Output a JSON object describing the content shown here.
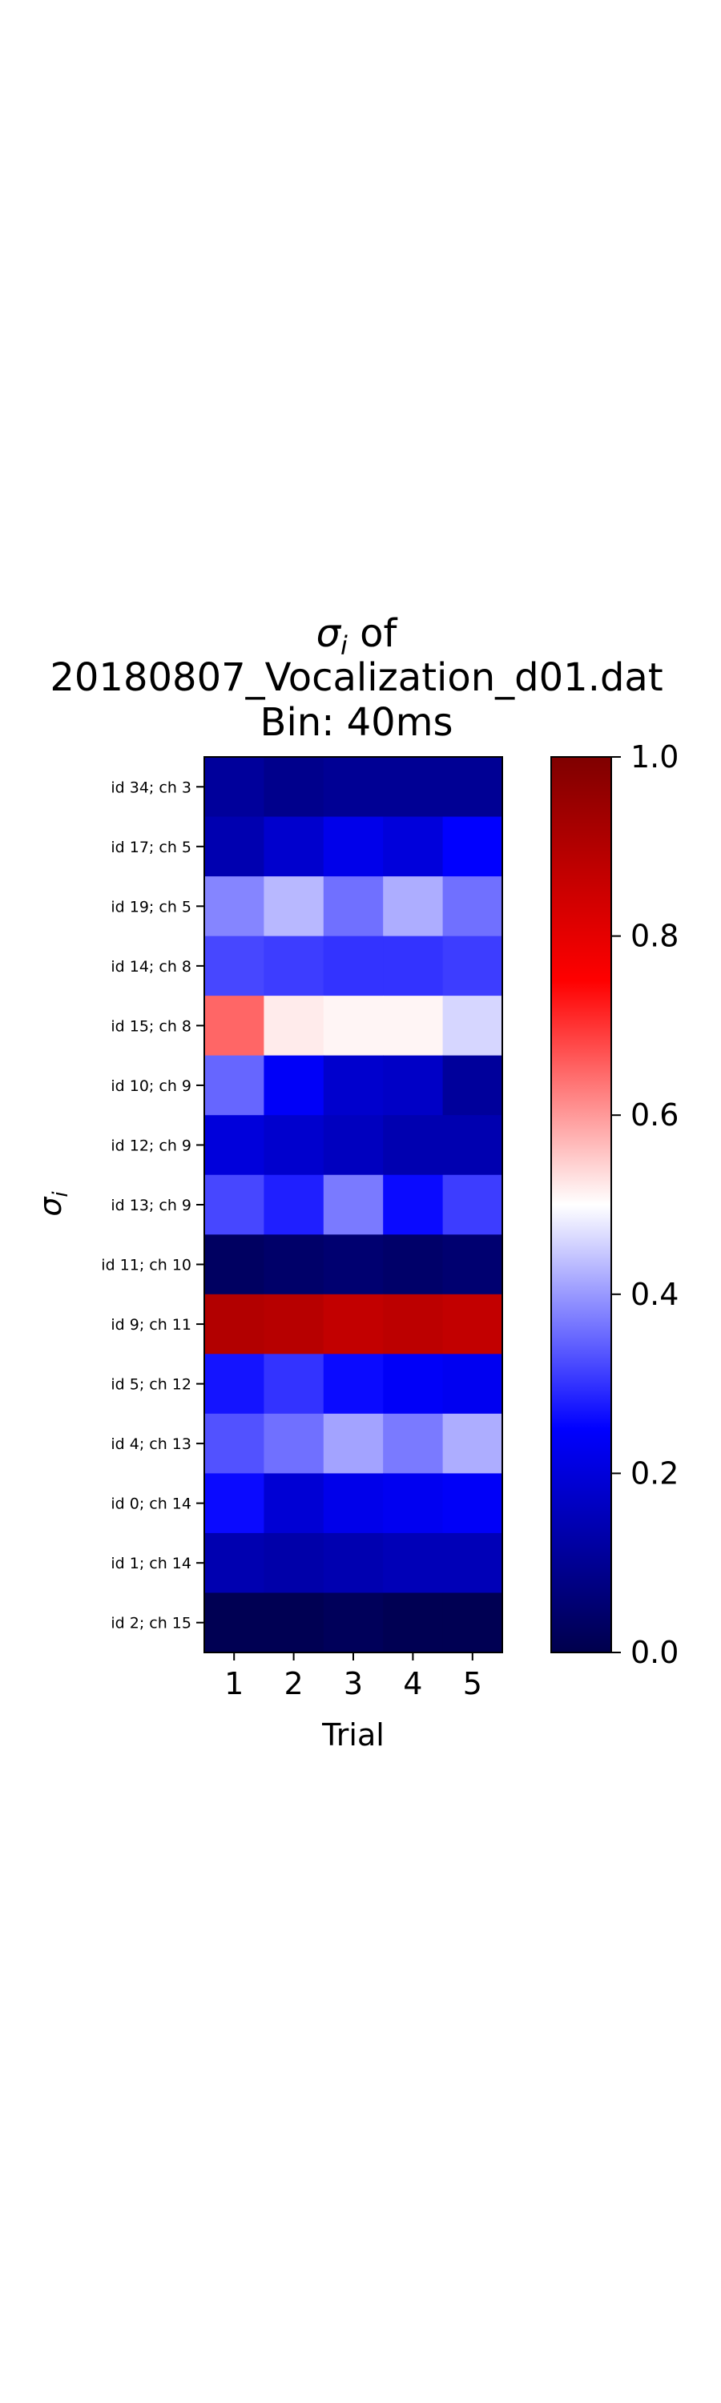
{
  "chart_data": {
    "type": "heatmap",
    "title_lines": [
      {
        "prefix": "",
        "sym": "σ",
        "sub": "i",
        "suffix": " of"
      },
      {
        "text": "20180807_Vocalization_d01.dat"
      },
      {
        "text": "Bin: 40ms"
      }
    ],
    "xlabel": "Trial",
    "ylabel": {
      "sym": "σ",
      "sub": "i"
    },
    "x_categories": [
      "1",
      "2",
      "3",
      "4",
      "5"
    ],
    "y_categories": [
      "id 34; ch 3",
      "id 17; ch 5",
      "id 19; ch 5",
      "id 14; ch 8",
      "id 15; ch 8",
      "id 10; ch 9",
      "id 12; ch 9",
      "id 13; ch 9",
      "id 11; ch 10",
      "id 9; ch 11",
      "id 5; ch 12",
      "id 4; ch 13",
      "id 0; ch 14",
      "id 1; ch 14",
      "id 2; ch 15"
    ],
    "values": [
      [
        0.11,
        0.09,
        0.1,
        0.1,
        0.1
      ],
      [
        0.14,
        0.18,
        0.22,
        0.2,
        0.25
      ],
      [
        0.38,
        0.43,
        0.36,
        0.42,
        0.36
      ],
      [
        0.32,
        0.31,
        0.3,
        0.3,
        0.31
      ],
      [
        0.65,
        0.52,
        0.51,
        0.51,
        0.46
      ],
      [
        0.35,
        0.24,
        0.18,
        0.17,
        0.11
      ],
      [
        0.2,
        0.18,
        0.16,
        0.14,
        0.14
      ],
      [
        0.32,
        0.28,
        0.37,
        0.26,
        0.31
      ],
      [
        0.03,
        0.04,
        0.05,
        0.04,
        0.05
      ],
      [
        0.9,
        0.89,
        0.87,
        0.88,
        0.87
      ],
      [
        0.27,
        0.3,
        0.26,
        0.24,
        0.23
      ],
      [
        0.33,
        0.36,
        0.41,
        0.37,
        0.42
      ],
      [
        0.26,
        0.19,
        0.22,
        0.23,
        0.24
      ],
      [
        0.14,
        0.13,
        0.14,
        0.15,
        0.15
      ],
      [
        0.01,
        0.01,
        0.02,
        0.01,
        0.01
      ]
    ],
    "colormap": {
      "name": "seismic",
      "stops": [
        {
          "v": 0.0,
          "color": "#00004c"
        },
        {
          "v": 0.25,
          "color": "#0000ff"
        },
        {
          "v": 0.5,
          "color": "#ffffff"
        },
        {
          "v": 0.75,
          "color": "#ff0000"
        },
        {
          "v": 1.0,
          "color": "#7f0000"
        }
      ]
    },
    "colorbar": {
      "range": [
        0.0,
        1.0
      ],
      "ticks": [
        "0.0",
        "0.2",
        "0.4",
        "0.6",
        "0.8",
        "1.0"
      ]
    },
    "grid": false,
    "legend": "colorbar-right"
  }
}
